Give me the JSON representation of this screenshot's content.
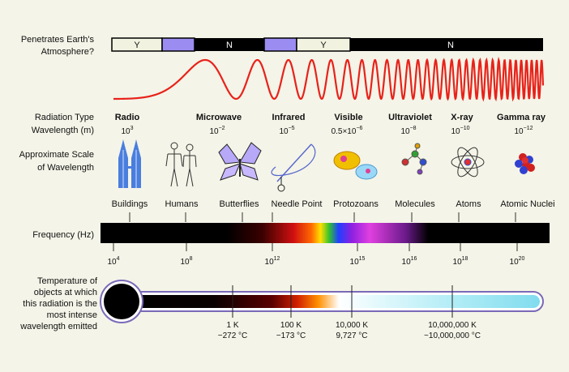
{
  "atmosphere": {
    "label_line1": "Penetrates Earth's",
    "label_line2": "Atmosphere?",
    "segments": [
      {
        "text": "Y",
        "color": "#f2f2e0"
      },
      {
        "text": "",
        "color": "#9a8cf0"
      },
      {
        "text": "N",
        "color": "#000000"
      },
      {
        "text": "",
        "color": "#9a8cf0"
      },
      {
        "text": "Y",
        "color": "#f2f2e0"
      },
      {
        "text": "N",
        "color": "#000000"
      }
    ]
  },
  "radiation": {
    "type_label": "Radiation Type",
    "wavelength_label": "Wavelength (m)",
    "types": [
      {
        "name": "Radio",
        "wavelength_base": "10",
        "wavelength_exp": "3"
      },
      {
        "name": "Microwave",
        "wavelength_base": "10",
        "wavelength_exp": "−2"
      },
      {
        "name": "Infrared",
        "wavelength_base": "10",
        "wavelength_exp": "−5"
      },
      {
        "name": "Visible",
        "wavelength_base": "0.5×10",
        "wavelength_exp": "−6"
      },
      {
        "name": "Ultraviolet",
        "wavelength_base": "10",
        "wavelength_exp": "−8"
      },
      {
        "name": "X-ray",
        "wavelength_base": "10",
        "wavelength_exp": "−10"
      },
      {
        "name": "Gamma ray",
        "wavelength_base": "10",
        "wavelength_exp": "−12"
      }
    ]
  },
  "scale": {
    "label_line1": "Approximate Scale",
    "label_line2": "of Wavelength",
    "items": [
      "Buildings",
      "Humans",
      "Butterflies",
      "Needle Point",
      "Protozoans",
      "Molecules",
      "Atoms",
      "Atomic Nuclei"
    ]
  },
  "frequency": {
    "label": "Frequency (Hz)",
    "ticks": [
      {
        "base": "10",
        "exp": "4"
      },
      {
        "base": "10",
        "exp": "8"
      },
      {
        "base": "10",
        "exp": "12"
      },
      {
        "base": "10",
        "exp": "15"
      },
      {
        "base": "10",
        "exp": "16"
      },
      {
        "base": "10",
        "exp": "18"
      },
      {
        "base": "10",
        "exp": "20"
      }
    ]
  },
  "temperature": {
    "label_lines": [
      "Temperature of",
      "objects at which",
      "this radiation is the",
      "most intense",
      "wavelength emitted"
    ],
    "ticks": [
      {
        "k": "1 K",
        "c": "−272 °C"
      },
      {
        "k": "100 K",
        "c": "−173 °C"
      },
      {
        "k": "10,000 K",
        "c": "9,727 °C"
      },
      {
        "k": "10,000,000 K",
        "c": "~10,000,000 °C"
      }
    ]
  },
  "colors": {
    "wave": "#e8221a",
    "background": "#f4f4e8",
    "atmosphere_purple": "#9a8cf0"
  }
}
